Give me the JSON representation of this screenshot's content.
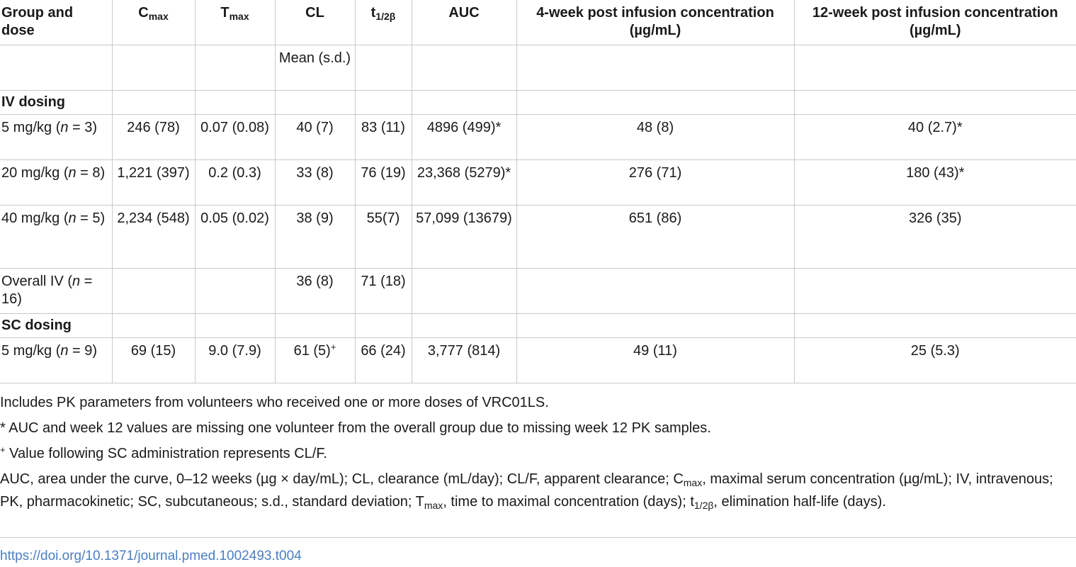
{
  "table": {
    "headers": {
      "group": "Group and dose",
      "cmax_base": "C",
      "cmax_sub": "max",
      "tmax_base": "T",
      "tmax_sub": "max",
      "cl": "CL",
      "thalf_base": "t",
      "thalf_sub": "1/2β",
      "auc": "AUC",
      "wk4": "4-week post infusion concentration (µg/mL)",
      "wk12": "12-week post infusion concentration (µg/mL)"
    },
    "mean_sd_label": "Mean (s.d.)",
    "sections": {
      "iv": "IV dosing",
      "sc": "SC dosing"
    },
    "rows": {
      "iv5": {
        "dose_prefix": "5 mg/kg (",
        "n_italic": "n",
        "dose_suffix": " = 3)",
        "cmax": "246 (78)",
        "tmax": "0.07 (0.08)",
        "cl": "40 (7)",
        "thalf": "83 (11)",
        "auc": "4896 (499)*",
        "wk4": "48 (8)",
        "wk12": "40 (2.7)*"
      },
      "iv20": {
        "dose_prefix": "20 mg/kg (",
        "n_italic": "n",
        "dose_suffix": " = 8)",
        "cmax": "1,221 (397)",
        "tmax": "0.2 (0.3)",
        "cl": "33 (8)",
        "thalf": "76 (19)",
        "auc": "23,368 (5279)*",
        "wk4": "276 (71)",
        "wk12": "180 (43)*"
      },
      "iv40": {
        "dose_prefix": "40 mg/kg (",
        "n_italic": "n",
        "dose_suffix": " = 5)",
        "cmax": "2,234 (548)",
        "tmax": "0.05 (0.02)",
        "cl": "38 (9)",
        "thalf": "55(7)",
        "auc": "57,099 (13679)",
        "wk4": "651 (86)",
        "wk12": "326 (35)"
      },
      "ivall": {
        "dose_prefix": "Overall IV (",
        "n_italic": "n",
        "dose_suffix": " = 16)",
        "cmax": "",
        "tmax": "",
        "cl": "36 (8)",
        "thalf": "71 (18)",
        "auc": "",
        "wk4": "",
        "wk12": ""
      },
      "sc5": {
        "dose_prefix": "5 mg/kg (",
        "n_italic": "n",
        "dose_suffix": " = 9)",
        "cmax": "69 (15)",
        "tmax": "9.0 (7.9)",
        "cl": "61 (5)",
        "cl_sup": "+",
        "thalf": "66 (24)",
        "auc": "3,777 (814)",
        "wk4": "49 (11)",
        "wk12": "25 (5.3)"
      }
    }
  },
  "notes": {
    "n1": "Includes PK parameters from volunteers who received one or more doses of VRC01LS.",
    "n2": "* AUC and week 12 values are missing one volunteer from the overall group due to missing week 12 PK samples.",
    "n3_sup": "+",
    "n3": " Value following SC administration represents CL/F.",
    "abbr_a": "AUC, area under the curve, 0–12 weeks (µg × day/mL); CL, clearance (mL/day); CL/F, apparent clearance; C",
    "abbr_a_sub": "max",
    "abbr_b": ", maximal serum concentration (µg/mL); IV, intravenous; PK, pharmacokinetic; SC, subcutaneous; s.d., standard deviation; T",
    "abbr_b_sub": "max",
    "abbr_c": ", time to maximal concentration (days); t",
    "abbr_c_sub": "1/2β",
    "abbr_d": ", elimination half-life (days)."
  },
  "doi": "https://doi.org/10.1371/journal.pmed.1002493.t004",
  "colors": {
    "border": "#c9c9c9",
    "link": "#4a7fc0",
    "text": "#1a1a1a"
  }
}
